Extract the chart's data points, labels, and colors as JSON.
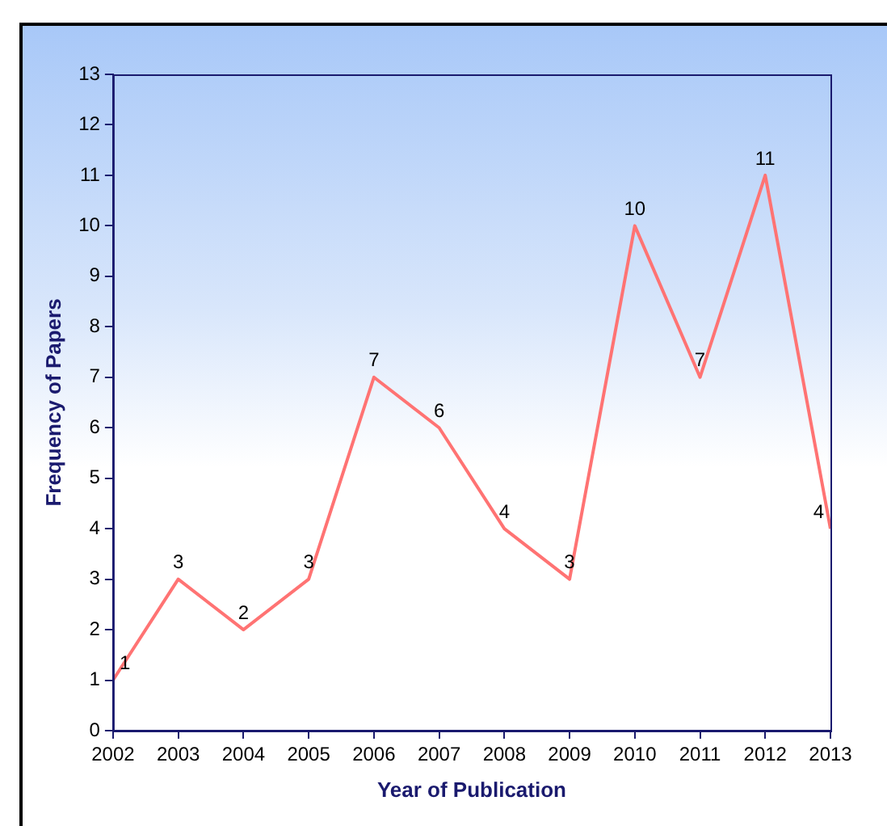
{
  "chart_data": {
    "type": "line",
    "xlabel": "Year of Publication",
    "ylabel": "Frequency of Papers",
    "x": [
      2002,
      2003,
      2004,
      2005,
      2006,
      2007,
      2008,
      2009,
      2010,
      2011,
      2012,
      2013
    ],
    "series": [
      {
        "color": "#ff7373",
        "values": [
          1,
          3,
          2,
          3,
          7,
          6,
          4,
          3,
          10,
          7,
          11,
          4
        ]
      }
    ],
    "xlim": [
      2002,
      2013
    ],
    "xticks": [
      2002,
      2003,
      2004,
      2005,
      2006,
      2007,
      2008,
      2009,
      2010,
      2011,
      2012,
      2013
    ],
    "ylim": [
      0,
      13
    ],
    "yticks": [
      0,
      1,
      2,
      3,
      4,
      5,
      6,
      7,
      8,
      9,
      10,
      11,
      12,
      13
    ],
    "grid": false,
    "legend": false,
    "marker": "none",
    "line_style": "solid",
    "data_labels": true
  }
}
